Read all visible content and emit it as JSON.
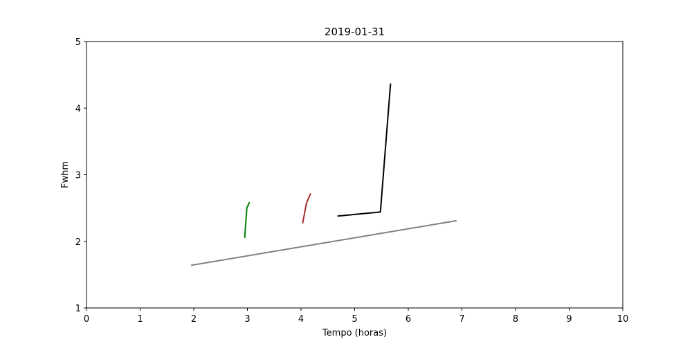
{
  "chart_data": {
    "type": "line",
    "title": "2019-01-31",
    "xlabel": "Tempo (horas)",
    "ylabel": "Fwhm",
    "xlim": [
      0,
      10
    ],
    "ylim": [
      1,
      5
    ],
    "xticks": [
      "0",
      "1",
      "2",
      "3",
      "4",
      "5",
      "6",
      "7",
      "8",
      "9",
      "10"
    ],
    "yticks": [
      "1",
      "2",
      "3",
      "4",
      "5"
    ],
    "grid": false,
    "series": [
      {
        "color": "#808080",
        "points": [
          [
            1.95,
            1.64
          ],
          [
            6.9,
            2.31
          ]
        ]
      },
      {
        "color": "#008000",
        "points": [
          [
            2.95,
            2.05
          ],
          [
            2.99,
            2.5
          ],
          [
            3.04,
            2.59
          ]
        ]
      },
      {
        "color": "#a52a2a",
        "points": [
          [
            4.03,
            2.27
          ],
          [
            4.1,
            2.57
          ],
          [
            4.18,
            2.72
          ]
        ]
      },
      {
        "color": "#000000",
        "points": [
          [
            4.68,
            2.38
          ],
          [
            5.48,
            2.44
          ],
          [
            5.67,
            4.37
          ]
        ]
      }
    ]
  }
}
